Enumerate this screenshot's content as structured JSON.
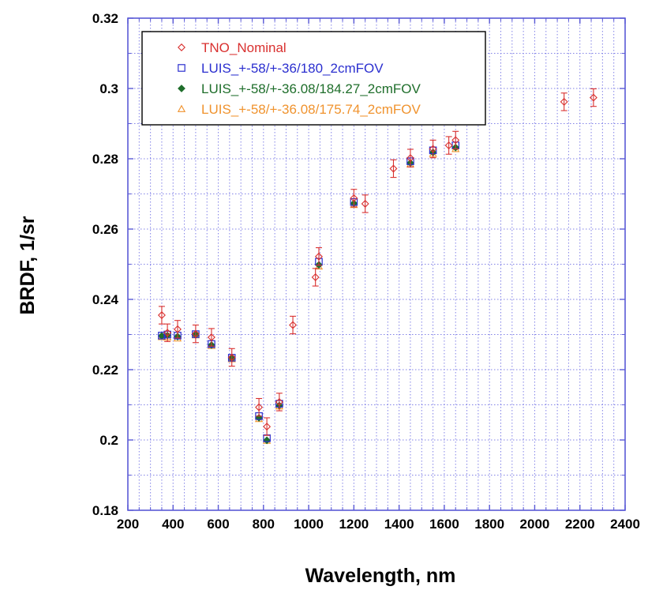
{
  "chart_data": {
    "type": "scatter",
    "title": "",
    "xlabel": "Wavelength, nm",
    "ylabel": "BRDF, 1/sr",
    "xlim": [
      200,
      2400
    ],
    "ylim": [
      0.18,
      0.32
    ],
    "x_ticks": [
      200,
      400,
      600,
      800,
      1000,
      1200,
      1400,
      1600,
      1800,
      2000,
      2200,
      2400
    ],
    "x_tick_labels": [
      "200",
      "400",
      "600",
      "800",
      "1000",
      "1200",
      "1400",
      "1600",
      "1800",
      "2000",
      "2200",
      "2400"
    ],
    "y_ticks": [
      0.18,
      0.2,
      0.22,
      0.24,
      0.26,
      0.28,
      0.3,
      0.32
    ],
    "y_tick_labels": [
      "0.18",
      "0.2",
      "0.22",
      "0.24",
      "0.26",
      "0.28",
      "0.3",
      "0.32"
    ],
    "x_minor_step": 50,
    "y_minor_step": 0.01,
    "grid": true,
    "legend_position": "top-left",
    "series": [
      {
        "name": "TNO_Nominal",
        "color": "#d9302f",
        "marker": "diamond",
        "error_bar": 0.0025,
        "points": [
          {
            "x": 350,
            "y": 0.2355
          },
          {
            "x": 375,
            "y": 0.2305
          },
          {
            "x": 420,
            "y": 0.2315
          },
          {
            "x": 500,
            "y": 0.2302
          },
          {
            "x": 570,
            "y": 0.2292
          },
          {
            "x": 660,
            "y": 0.2235
          },
          {
            "x": 780,
            "y": 0.2093
          },
          {
            "x": 815,
            "y": 0.2038
          },
          {
            "x": 870,
            "y": 0.2108
          },
          {
            "x": 930,
            "y": 0.2327
          },
          {
            "x": 1030,
            "y": 0.2463
          },
          {
            "x": 1045,
            "y": 0.2522
          },
          {
            "x": 1200,
            "y": 0.2688
          },
          {
            "x": 1250,
            "y": 0.2672
          },
          {
            "x": 1375,
            "y": 0.2772
          },
          {
            "x": 1450,
            "y": 0.2802
          },
          {
            "x": 1550,
            "y": 0.2828
          },
          {
            "x": 1620,
            "y": 0.2838
          },
          {
            "x": 1650,
            "y": 0.2853
          },
          {
            "x": 2130,
            "y": 0.2962
          },
          {
            "x": 2260,
            "y": 0.2974
          }
        ]
      },
      {
        "name": "LUIS_+-58/+-36/180_2cmFOV",
        "color": "#2b2fcf",
        "marker": "square",
        "points": [
          {
            "x": 350,
            "y": 0.2297
          },
          {
            "x": 375,
            "y": 0.23
          },
          {
            "x": 420,
            "y": 0.2297
          },
          {
            "x": 500,
            "y": 0.2301
          },
          {
            "x": 570,
            "y": 0.2273
          },
          {
            "x": 660,
            "y": 0.2234
          },
          {
            "x": 780,
            "y": 0.2068
          },
          {
            "x": 815,
            "y": 0.2005
          },
          {
            "x": 870,
            "y": 0.2103
          },
          {
            "x": 1045,
            "y": 0.2507
          },
          {
            "x": 1200,
            "y": 0.2677
          },
          {
            "x": 1450,
            "y": 0.2793
          },
          {
            "x": 1550,
            "y": 0.2824
          },
          {
            "x": 1650,
            "y": 0.2838
          }
        ]
      },
      {
        "name": "LUIS_+-58/+-36.08/184.27_2cmFOV",
        "color": "#1f6e2b",
        "marker": "diamond-filled",
        "points": [
          {
            "x": 350,
            "y": 0.2296
          },
          {
            "x": 375,
            "y": 0.2297
          },
          {
            "x": 420,
            "y": 0.2294
          },
          {
            "x": 500,
            "y": 0.2299
          },
          {
            "x": 570,
            "y": 0.227
          },
          {
            "x": 660,
            "y": 0.2232
          },
          {
            "x": 780,
            "y": 0.2063
          },
          {
            "x": 815,
            "y": 0.1999
          },
          {
            "x": 870,
            "y": 0.2098
          },
          {
            "x": 1045,
            "y": 0.2498
          },
          {
            "x": 1200,
            "y": 0.2673
          },
          {
            "x": 1450,
            "y": 0.2788
          },
          {
            "x": 1550,
            "y": 0.2818
          },
          {
            "x": 1650,
            "y": 0.2832
          }
        ]
      },
      {
        "name": "LUIS_+-58/+-36.08/175.74_2cmFOV",
        "color": "#f0932e",
        "marker": "triangle",
        "points": [
          {
            "x": 350,
            "y": 0.2293
          },
          {
            "x": 375,
            "y": 0.2292
          },
          {
            "x": 420,
            "y": 0.2289
          },
          {
            "x": 500,
            "y": 0.2298
          },
          {
            "x": 570,
            "y": 0.2268
          },
          {
            "x": 660,
            "y": 0.223
          },
          {
            "x": 780,
            "y": 0.206
          },
          {
            "x": 815,
            "y": 0.1998
          },
          {
            "x": 870,
            "y": 0.2096
          },
          {
            "x": 1045,
            "y": 0.2494
          },
          {
            "x": 1200,
            "y": 0.2669
          },
          {
            "x": 1450,
            "y": 0.2784
          },
          {
            "x": 1550,
            "y": 0.2814
          },
          {
            "x": 1650,
            "y": 0.2828
          }
        ]
      }
    ]
  },
  "colors": {
    "frame": "#5a5ad6",
    "grid": "#6d6de3",
    "legend_border": "#000000"
  }
}
